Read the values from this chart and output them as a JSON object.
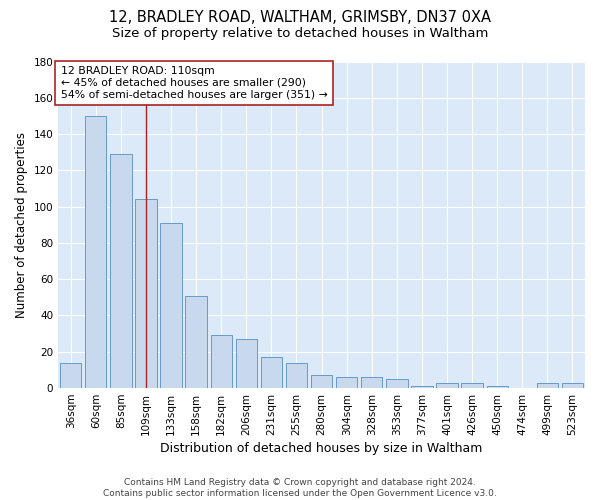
{
  "title1": "12, BRADLEY ROAD, WALTHAM, GRIMSBY, DN37 0XA",
  "title2": "Size of property relative to detached houses in Waltham",
  "xlabel": "Distribution of detached houses by size in Waltham",
  "ylabel": "Number of detached properties",
  "categories": [
    "36sqm",
    "60sqm",
    "85sqm",
    "109sqm",
    "133sqm",
    "158sqm",
    "182sqm",
    "206sqm",
    "231sqm",
    "255sqm",
    "280sqm",
    "304sqm",
    "328sqm",
    "353sqm",
    "377sqm",
    "401sqm",
    "426sqm",
    "450sqm",
    "474sqm",
    "499sqm",
    "523sqm"
  ],
  "values": [
    14,
    150,
    129,
    104,
    91,
    51,
    29,
    27,
    17,
    14,
    7,
    6,
    6,
    5,
    1,
    3,
    3,
    1,
    0,
    3,
    3
  ],
  "bar_color": "#c8d9ee",
  "bar_edge_color": "#6699cc",
  "vline_x_index": 3,
  "vline_color": "#aa2222",
  "annotation_line1": "12 BRADLEY ROAD: 110sqm",
  "annotation_line2": "← 45% of detached houses are smaller (290)",
  "annotation_line3": "54% of semi-detached houses are larger (351) →",
  "annotation_box_color": "#ffffff",
  "annotation_box_edge_color": "#aa2222",
  "ylim": [
    0,
    180
  ],
  "yticks": [
    0,
    20,
    40,
    60,
    80,
    100,
    120,
    140,
    160,
    180
  ],
  "footer_text": "Contains HM Land Registry data © Crown copyright and database right 2024.\nContains public sector information licensed under the Open Government Licence v3.0.",
  "plot_bg_color": "#dce9f8",
  "title1_fontsize": 10.5,
  "title2_fontsize": 9.5,
  "xlabel_fontsize": 9,
  "ylabel_fontsize": 8.5,
  "tick_fontsize": 7.5,
  "footer_fontsize": 6.5,
  "annotation_fontsize": 7.8
}
